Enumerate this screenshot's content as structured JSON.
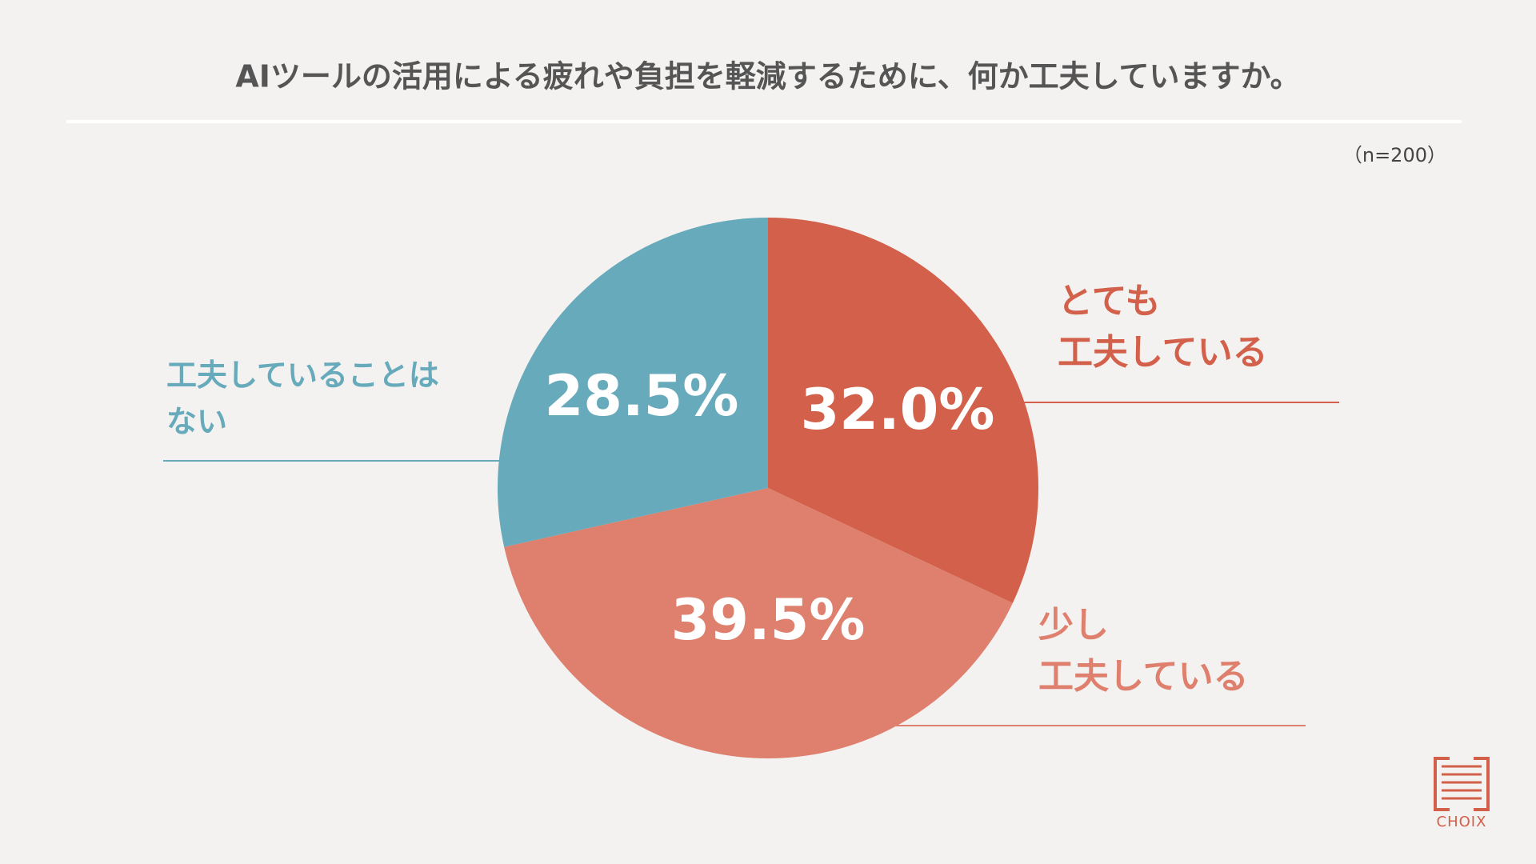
{
  "chart_data": {
    "type": "pie",
    "title": "AIツールの活用による疲れや負担を軽減するために、何か工夫していますか。",
    "note": "（n=200）",
    "categories": [
      "とても\n工夫している",
      "少し\n工夫している",
      "工夫していることは\nない"
    ],
    "values": [
      32.0,
      39.5,
      28.5
    ],
    "value_labels": [
      "32.0%",
      "39.5%",
      "28.5%"
    ],
    "colors": [
      "#d2604a",
      "#de806d",
      "#66aabb"
    ],
    "start_angle": 0,
    "direction": "clockwise"
  },
  "logo": "CHOIX"
}
